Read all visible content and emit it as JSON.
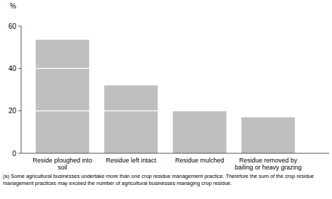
{
  "chart_data": {
    "type": "bar",
    "ylabel": "%",
    "categories": [
      "Reside ploughed into soil",
      "Residue left intact",
      "Residue mulched",
      "Residue removed by bailing or heavy grazing"
    ],
    "values": [
      53.5,
      32,
      20,
      17
    ],
    "color": "#bfbfbf",
    "ylim": [
      0,
      60
    ],
    "yticks": [
      0,
      20,
      40,
      60
    ],
    "grid": true,
    "annotations": [
      "(a) Some agricultural businesses undertake more than one crop residue management practice. Therefore the sum of the crop residue management practices may exceed the number of agricultural businesses managing crop residue."
    ]
  }
}
